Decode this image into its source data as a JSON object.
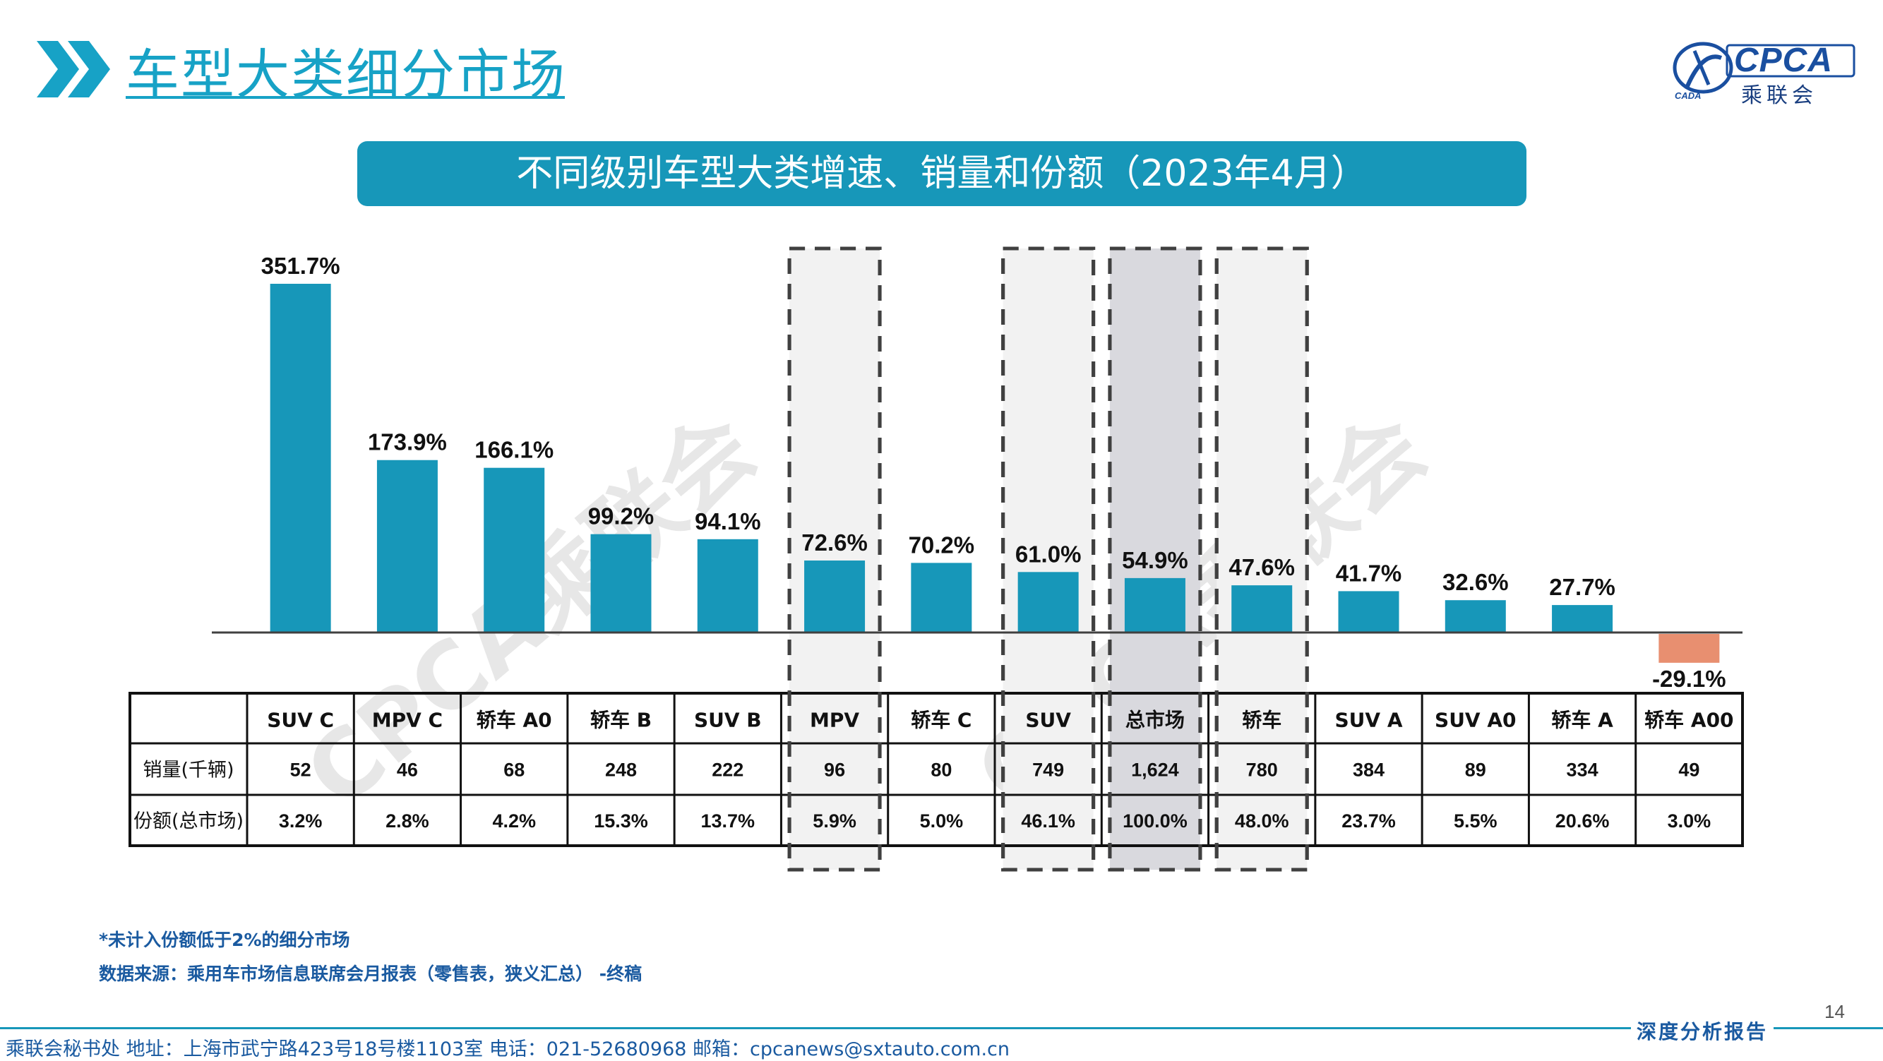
{
  "header": {
    "title": "车型大类细分市场",
    "logo_text": "CPCA",
    "logo_cn": "乘联会",
    "logo_sub": "CADA"
  },
  "chart_heading": "不同级别车型大类增速、销量和份额（2023年4月）",
  "colors": {
    "accent": "#17a2c6",
    "bar_positive": "#1797b9",
    "bar_negative": "#e88f70",
    "highlight_fill": "#f2f2f2",
    "highlight_fill_dark": "#d9d9de"
  },
  "chart_data": {
    "type": "bar",
    "categories": [
      "SUV C",
      "MPV C",
      "轿车 A0",
      "轿车 B",
      "SUV B",
      "MPV",
      "轿车 C",
      "SUV",
      "总市场",
      "轿车",
      "SUV A",
      "SUV A0",
      "轿车 A",
      "轿车 A00"
    ],
    "series": [
      {
        "values": [
          351.7,
          173.9,
          166.1,
          99.2,
          94.1,
          72.6,
          70.2,
          61.0,
          54.9,
          47.6,
          41.7,
          32.6,
          27.7,
          -29.1
        ],
        "labels": [
          "351.7%",
          "173.9%",
          "166.1%",
          "99.2%",
          "94.1%",
          "72.6%",
          "70.2%",
          "61.0%",
          "54.9%",
          "47.6%",
          "41.7%",
          "32.6%",
          "27.7%",
          "-29.1%"
        ]
      }
    ],
    "highlighted_categories": [
      "MPV",
      "SUV",
      "总市场",
      "轿车"
    ],
    "table": {
      "rows": [
        {
          "label": "销量(千辆)",
          "values": [
            "52",
            "46",
            "68",
            "248",
            "222",
            "96",
            "80",
            "749",
            "1,624",
            "780",
            "384",
            "89",
            "334",
            "49"
          ]
        },
        {
          "label": "份额(总市场)",
          "values": [
            "3.2%",
            "2.8%",
            "4.2%",
            "15.3%",
            "13.7%",
            "5.9%",
            "5.0%",
            "46.1%",
            "100.0%",
            "48.0%",
            "23.7%",
            "5.5%",
            "20.6%",
            "3.0%"
          ]
        }
      ]
    },
    "watermark": "CPCA乘联会"
  },
  "footer": {
    "note": "*未计入份额低于2%的细分市场",
    "source": "数据来源：乘用车市场信息联席会月报表（零售表，狭义汇总） -终稿",
    "page_number": "14",
    "report_tag": "深度分析报告",
    "contact": "乘联会秘书处   地址：上海市武宁路423号18号楼1103室  电话：021-52680968   邮箱：cpcanews@sxtauto.com.cn"
  }
}
